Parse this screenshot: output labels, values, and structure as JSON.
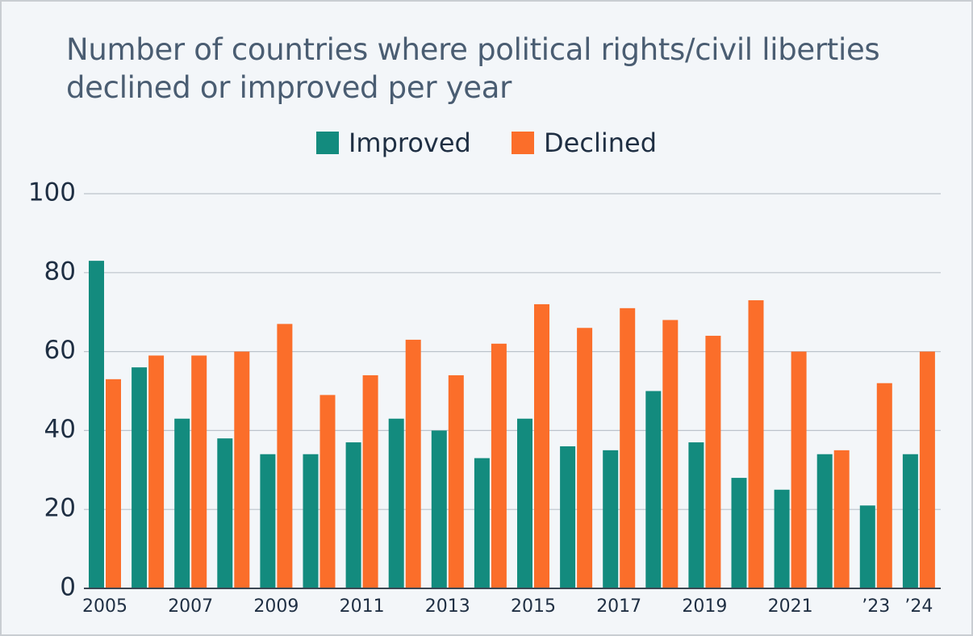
{
  "colors": {
    "improved": "#138b7e",
    "declined": "#fb6e2a",
    "grid": "#bcc3cb",
    "axis": "#3b4652",
    "text": "#1f2f43"
  },
  "chart_data": {
    "type": "bar",
    "title": "Number of countries where political rights/civil liberties declined or improved per year",
    "title_lines": [
      "Number of countries where political rights/civil liberties",
      "declined or improved per year"
    ],
    "xlabel": "",
    "ylabel": "",
    "ylim": [
      0,
      100
    ],
    "yticks": [
      0,
      20,
      40,
      60,
      80,
      100
    ],
    "grid": true,
    "legend_position": "top-center",
    "categories": [
      "2005",
      "2006",
      "2007",
      "2008",
      "2009",
      "2010",
      "2011",
      "2012",
      "2013",
      "2014",
      "2015",
      "2016",
      "2017",
      "2018",
      "2019",
      "2020",
      "2021",
      "2022",
      "'23",
      "'24"
    ],
    "xtick_labels": [
      "2005",
      "",
      "2007",
      "",
      "2009",
      "",
      "2011",
      "",
      "2013",
      "",
      "2015",
      "",
      "2017",
      "",
      "2019",
      "",
      "2021",
      "",
      "’23",
      "’24"
    ],
    "series": [
      {
        "name": "Improved",
        "color": "#138b7e",
        "values": [
          83,
          56,
          43,
          38,
          34,
          34,
          37,
          43,
          40,
          33,
          43,
          36,
          35,
          50,
          37,
          28,
          25,
          34,
          21,
          34
        ]
      },
      {
        "name": "Declined",
        "color": "#fb6e2a",
        "values": [
          53,
          59,
          59,
          60,
          67,
          49,
          54,
          63,
          54,
          62,
          72,
          66,
          71,
          68,
          64,
          73,
          60,
          35,
          52,
          60
        ]
      }
    ]
  }
}
